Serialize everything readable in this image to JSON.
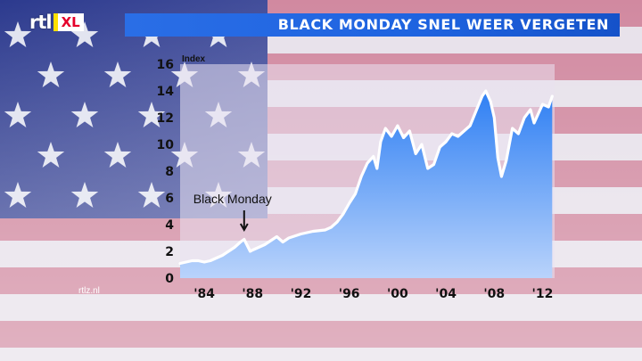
{
  "header": {
    "title": "BLACK MONDAY SNEL WEER VERGETEN"
  },
  "logo": {
    "part1": "rtl",
    "part2": "XL"
  },
  "source": "rtlz.nl",
  "colors": {
    "headline": "#1e63e0",
    "area_top": "#2e7ff3",
    "area_bottom": "#b9d3fb",
    "line": "#ffffff"
  },
  "chart_data": {
    "type": "area",
    "ylabel": "Index",
    "ylim": [
      0,
      16
    ],
    "yticks": [
      "0",
      "2",
      "4",
      "6",
      "8",
      "10",
      "12",
      "14",
      "16"
    ],
    "xlim": [
      1982,
      2013
    ],
    "xticks": [
      {
        "value": 1984,
        "label": "'84"
      },
      {
        "value": 1988,
        "label": "'88"
      },
      {
        "value": 1992,
        "label": "'92"
      },
      {
        "value": 1996,
        "label": "'96"
      },
      {
        "value": 2000,
        "label": "'00"
      },
      {
        "value": 2004,
        "label": "'04"
      },
      {
        "value": 2008,
        "label": "'08"
      },
      {
        "value": 2012,
        "label": "'12"
      }
    ],
    "annotation": {
      "text": "Black Monday",
      "x": 1987.3
    },
    "x": [
      1982,
      1983,
      1983.5,
      1984,
      1984.5,
      1985,
      1985.5,
      1986,
      1986.5,
      1987,
      1987.3,
      1987.8,
      1988,
      1989,
      1989.5,
      1990,
      1990.5,
      1991,
      1992,
      1993,
      1994,
      1994.5,
      1995,
      1995.5,
      1996,
      1996.5,
      1997,
      1997.5,
      1998,
      1998.3,
      1998.6,
      1999,
      1999.5,
      2000,
      2000.5,
      2001,
      2001.5,
      2002,
      2002.5,
      2003,
      2003.5,
      2004,
      2004.5,
      2005,
      2005.5,
      2006,
      2006.5,
      2007,
      2007.3,
      2007.7,
      2008,
      2008.3,
      2008.6,
      2009,
      2009.5,
      2010,
      2010.5,
      2011,
      2011.3,
      2011.7,
      2012,
      2012.5,
      2012.8
    ],
    "values": [
      1.1,
      1.3,
      1.3,
      1.2,
      1.3,
      1.5,
      1.7,
      2.0,
      2.3,
      2.7,
      2.9,
      2.0,
      2.1,
      2.5,
      2.8,
      3.1,
      2.7,
      3.0,
      3.3,
      3.5,
      3.6,
      3.8,
      4.2,
      4.8,
      5.6,
      6.3,
      7.6,
      8.6,
      9.1,
      8.2,
      10.2,
      11.2,
      10.6,
      11.4,
      10.5,
      11.0,
      9.3,
      10.0,
      8.2,
      8.5,
      9.8,
      10.2,
      10.8,
      10.6,
      11.0,
      11.4,
      12.5,
      13.6,
      14.0,
      13.2,
      12.0,
      9.0,
      7.6,
      8.8,
      11.2,
      10.8,
      12.0,
      12.6,
      11.6,
      12.4,
      13.0,
      12.8,
      13.6
    ]
  }
}
